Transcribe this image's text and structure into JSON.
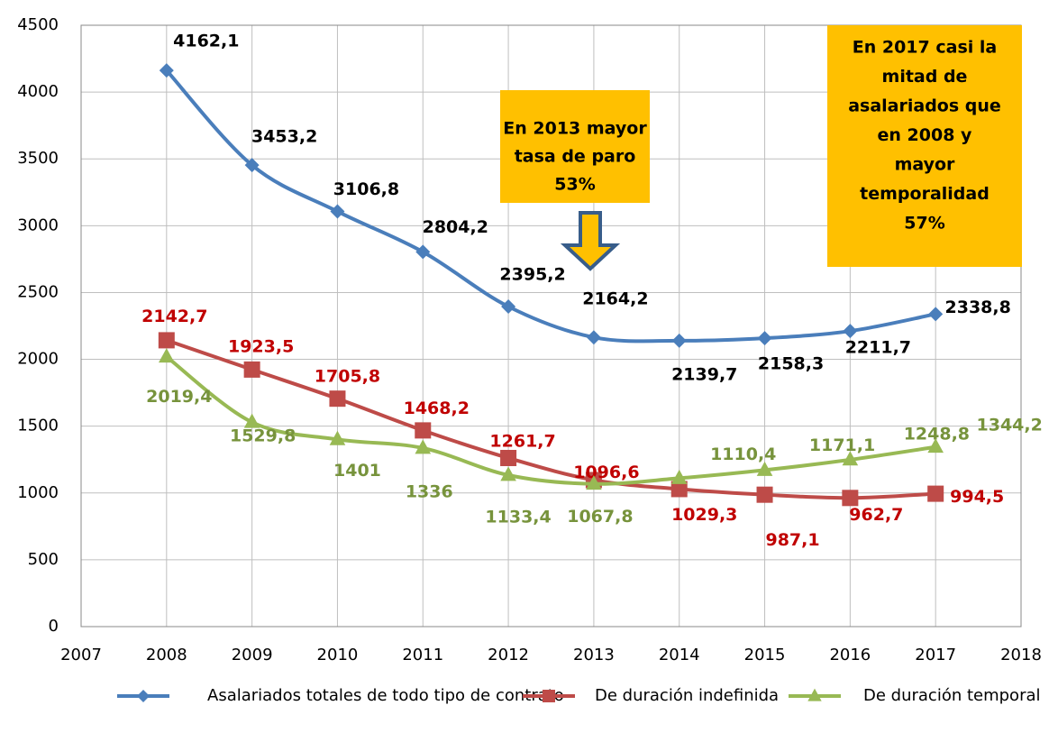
{
  "chart_data": {
    "type": "line",
    "x": [
      2008,
      2009,
      2010,
      2011,
      2012,
      2013,
      2014,
      2015,
      2016,
      2017
    ],
    "xlim": [
      2007,
      2018
    ],
    "xticks": [
      2007,
      2008,
      2009,
      2010,
      2011,
      2012,
      2013,
      2014,
      2015,
      2016,
      2017,
      2018
    ],
    "ylim": [
      0,
      4500
    ],
    "yticks": [
      0,
      500,
      1000,
      1500,
      2000,
      2500,
      3000,
      3500,
      4000,
      4500
    ],
    "grid": true,
    "legend": "bottom",
    "series": [
      {
        "name": "Asalariados totales de todo tipo de contrato",
        "color": "#4a7ebb",
        "marker": "diamond",
        "label_color": "#000000",
        "values": [
          4162.1,
          3453.2,
          3106.8,
          2804.2,
          2395.2,
          2164.2,
          2139.7,
          2158.3,
          2211.7,
          2338.8
        ],
        "value_labels": [
          "4162,1",
          "3453,2",
          "3106,8",
          "2804,2",
          "2395,2",
          "2164,2",
          "2139,7",
          "2158,3",
          "2211,7",
          "2338,8"
        ]
      },
      {
        "name": "De duración indefinida",
        "color": "#be4b48",
        "marker": "square",
        "label_color": "#c00000",
        "values": [
          2142.7,
          1923.5,
          1705.8,
          1468.2,
          1261.7,
          1096.6,
          1029.3,
          987.1,
          962.7,
          994.5
        ],
        "value_labels": [
          "2142,7",
          "1923,5",
          "1705,8",
          "1468,2",
          "1261,7",
          "1096,6",
          "1029,3",
          "987,1",
          "962,7",
          "994,5"
        ]
      },
      {
        "name": "De duración temporal",
        "color": "#98b954",
        "marker": "triangle",
        "label_color": "#77933c",
        "values": [
          2019.4,
          1529.8,
          1401,
          1336,
          1133.4,
          1067.8,
          1110.4,
          1171.1,
          1248.8,
          1344.2
        ],
        "value_labels": [
          "2019,4",
          "1529,8",
          "1401",
          "1336",
          "1133,4",
          "1067,8",
          "1110,4",
          "1171,1",
          "1248,8",
          "1344,2"
        ]
      }
    ],
    "annotations": [
      {
        "lines": [
          "En 2013 mayor",
          "tasa de paro",
          "53%"
        ],
        "color": "#ffc000"
      },
      {
        "lines": [
          "En 2017 casi la",
          "mitad de",
          "asalariados que",
          "en 2008 y",
          "mayor",
          "temporalidad",
          "57%"
        ],
        "color": "#ffc000"
      }
    ]
  }
}
